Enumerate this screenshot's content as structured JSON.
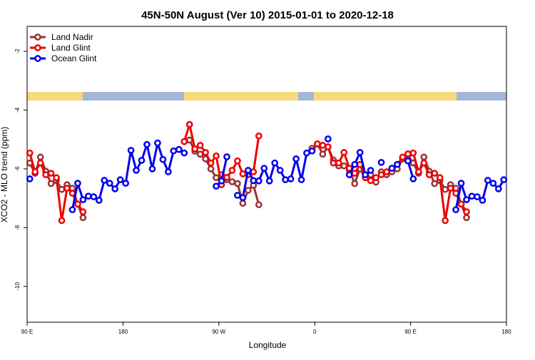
{
  "chart_data": {
    "type": "line",
    "title": "45N-50N August (Ver 10)   2015-01-01 to 2020-12-18",
    "x_label": "Longitude",
    "y_label": "XCO2 - MLO trend (ppm)",
    "x": [
      92.5,
      97.5,
      102.5,
      107.5,
      112.5,
      117.5,
      122.5,
      127.5,
      132.5,
      137.5,
      142.5,
      147.5,
      152.5,
      157.5,
      162.5,
      167.5,
      172.5,
      177.5,
      182.5,
      187.5,
      192.5,
      197.5,
      202.5,
      207.5,
      212.5,
      217.5,
      222.5,
      227.5,
      232.5,
      237.5,
      242.5,
      247.5,
      252.5,
      257.5,
      262.5,
      267.5,
      272.5,
      277.5,
      282.5,
      287.5,
      292.5,
      297.5,
      302.5,
      307.5,
      312.5,
      317.5,
      322.5,
      327.5,
      332.5,
      337.5,
      342.5,
      347.5,
      352.5,
      357.5,
      362.5,
      367.5,
      372.5,
      377.5,
      382.5,
      387.5,
      392.5,
      397.5,
      402.5,
      407.5,
      412.5,
      417.5,
      422.5,
      427.5,
      432.5,
      437.5,
      442.5,
      447.5,
      452.5,
      457.5,
      462.5,
      467.5,
      472.5,
      477.5,
      482.5,
      487.5,
      492.5,
      497.5,
      502.5,
      507.5,
      512.5,
      517.5,
      522.5,
      527.5,
      532.5,
      537.5
    ],
    "series": [
      {
        "name": "Land Nadir",
        "color": "#993333",
        "values": [
          -5.8,
          -6.15,
          -5.6,
          -6.08,
          -6.5,
          -6.4,
          -6.7,
          -6.54,
          -6.66,
          -7.2,
          -7.66,
          null,
          null,
          null,
          null,
          null,
          null,
          null,
          null,
          null,
          null,
          null,
          null,
          null,
          null,
          null,
          null,
          null,
          null,
          -5.07,
          -5.02,
          -5.4,
          -5.5,
          -5.66,
          -6.0,
          -6.3,
          -6.2,
          -6.37,
          -6.44,
          -6.5,
          -7.17,
          -6.73,
          -6.56,
          -7.22,
          null,
          null,
          null,
          null,
          null,
          null,
          null,
          null,
          null,
          -5.3,
          -5.15,
          -5.5,
          -5.25,
          -5.7,
          -5.9,
          -5.9,
          -6.05,
          -6.5,
          -6.0,
          -6.3,
          -6.2,
          -6.45,
          -6.1,
          -6.2,
          -6.1,
          -6.0,
          -5.66,
          -5.55,
          -5.8,
          -6.15,
          -5.6,
          -6.08,
          -6.5,
          -6.4,
          -6.7,
          -6.54,
          -6.66,
          -7.2,
          -7.66,
          null,
          null,
          null,
          null,
          null,
          null,
          null
        ]
      },
      {
        "name": "Land Glint",
        "color": "#ee0000",
        "values": [
          -5.46,
          -6.1,
          -5.8,
          -6.2,
          -6.15,
          -6.3,
          -7.76,
          -6.66,
          -6.83,
          -7.2,
          -7.46,
          null,
          null,
          null,
          null,
          null,
          null,
          null,
          null,
          null,
          null,
          null,
          null,
          null,
          null,
          null,
          null,
          null,
          null,
          -5.07,
          -4.49,
          -5.32,
          -5.2,
          -5.44,
          -5.8,
          -5.56,
          -6.54,
          -6.29,
          -6.05,
          -5.73,
          -6.17,
          -6.2,
          -6.1,
          -4.88,
          null,
          null,
          null,
          null,
          null,
          null,
          null,
          null,
          null,
          -5.39,
          -5.15,
          -5.2,
          -5.25,
          -5.8,
          -5.8,
          -5.44,
          -5.98,
          -6.15,
          -5.85,
          -6.3,
          -6.4,
          -6.3,
          -6.2,
          -6.1,
          -5.98,
          -5.85,
          -5.6,
          -5.49,
          -5.46,
          -6.1,
          -5.8,
          -6.2,
          -6.15,
          -6.3,
          -7.76,
          -6.66,
          -6.83,
          -7.2,
          -7.46,
          null,
          null,
          null,
          null,
          null,
          null,
          null
        ]
      },
      {
        "name": "Ocean Glint",
        "color": "#0000ee",
        "values": [
          -6.34,
          null,
          null,
          null,
          null,
          null,
          null,
          null,
          -7.39,
          -6.49,
          -7.05,
          -6.93,
          -6.95,
          -7.07,
          -6.39,
          -6.49,
          -6.68,
          -6.37,
          -6.49,
          -5.37,
          -6.05,
          -5.71,
          -5.17,
          -6.0,
          -5.12,
          -5.68,
          -6.1,
          -5.39,
          -5.34,
          -5.46,
          null,
          null,
          null,
          null,
          null,
          -6.59,
          -6.41,
          -5.59,
          null,
          -6.9,
          -6.98,
          -6.05,
          -6.4,
          -6.41,
          -5.98,
          -6.41,
          -5.8,
          -6.05,
          -6.37,
          -6.34,
          -5.66,
          -6.37,
          -5.46,
          -5.39,
          null,
          null,
          -4.98,
          null,
          null,
          null,
          -6.2,
          -5.85,
          -5.44,
          -6.2,
          -6.05,
          null,
          -5.78,
          null,
          -5.98,
          -5.85,
          null,
          -5.73,
          -6.34,
          null,
          null,
          null,
          null,
          null,
          null,
          null,
          -7.39,
          -6.49,
          -7.05,
          -6.93,
          -6.95,
          -7.07,
          -6.39,
          -6.49,
          -6.68,
          -6.37
        ]
      }
    ],
    "xlim": [
      90,
      540
    ],
    "xticks": [
      {
        "value": 90,
        "label": "90 E"
      },
      180,
      {
        "value": 270,
        "label": "90 W"
      },
      {
        "value": 360,
        "label": "0"
      },
      {
        "value": 450,
        "label": "90 E"
      },
      {
        "value": 540,
        "label": "180"
      }
    ],
    "ylim": [
      -11.22,
      -1.15
    ],
    "yticks": [
      -10,
      -8,
      -6,
      -4,
      -2
    ],
    "legend": "top-left"
  }
}
